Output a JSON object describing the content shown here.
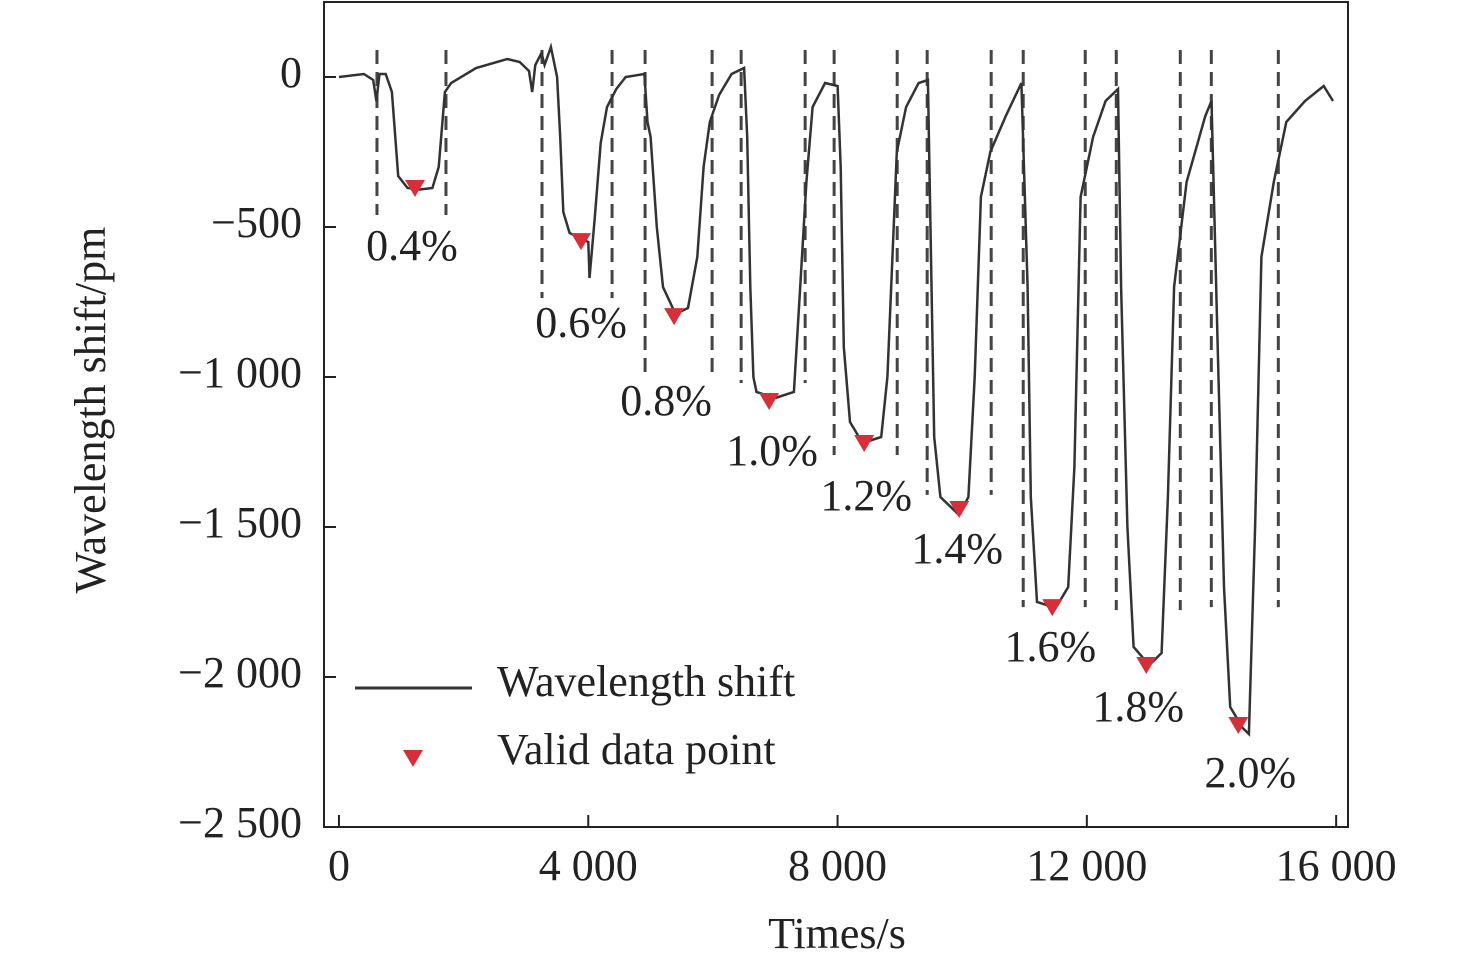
{
  "chart_data": {
    "type": "line",
    "x_label": "Times/s",
    "y_label": "Wavelength shift/pm",
    "xlim": [
      -240,
      16190
    ],
    "ylim": [
      -2500,
      250
    ],
    "xticks": [
      0,
      {
        "value": 4000,
        "label": "4 000"
      },
      {
        "value": 8000,
        "label": "8 000"
      },
      {
        "value": 12000,
        "label": "12 000"
      },
      {
        "value": 16000,
        "label": "16 000"
      }
    ],
    "yticks": [
      0,
      {
        "value": -500,
        "label": "−500"
      },
      {
        "value": -1000,
        "label": "−1 000"
      },
      {
        "value": -1500,
        "label": "−1 500"
      },
      {
        "value": -2000,
        "label": "−2 000"
      },
      {
        "value": -2500,
        "label": "−2 500"
      }
    ],
    "series": [
      {
        "name": "Wavelength shift",
        "color": "#333333",
        "x": [
          0,
          400,
          550,
          600,
          650,
          750,
          850,
          950,
          1100,
          1300,
          1500,
          1600,
          1700,
          1800,
          2200,
          2700,
          2900,
          3050,
          3100,
          3150,
          3250,
          3300,
          3400,
          3500,
          3550,
          3600,
          3700,
          3900,
          4000,
          4020,
          4100,
          4200,
          4300,
          4450,
          4600,
          4900,
          4950,
          5000,
          5100,
          5200,
          5400,
          5600,
          5750,
          5850,
          5950,
          6100,
          6300,
          6500,
          6550,
          6600,
          6650,
          6700,
          7000,
          7300,
          7400,
          7500,
          7600,
          7800,
          8000,
          8050,
          8100,
          8200,
          8400,
          8700,
          8800,
          8900,
          8950,
          9100,
          9300,
          9450,
          9500,
          9550,
          9650,
          9950,
          10100,
          10200,
          10300,
          10450,
          10700,
          10950,
          11050,
          11100,
          11200,
          11500,
          11700,
          11800,
          11900,
          12100,
          12300,
          12500,
          12550,
          12650,
          12750,
          13000,
          13200,
          13300,
          13400,
          13600,
          13900,
          14000,
          14100,
          14200,
          14300,
          14500,
          14600,
          14700,
          14800,
          15000,
          15200,
          15500,
          15800,
          15950
        ],
        "values": [
          0,
          10,
          -10,
          -80,
          10,
          10,
          -50,
          -330,
          -370,
          -375,
          -370,
          -300,
          -50,
          -20,
          30,
          60,
          50,
          20,
          -50,
          40,
          80,
          40,
          100,
          0,
          -200,
          -450,
          -520,
          -540,
          -550,
          -670,
          -480,
          -220,
          -100,
          -40,
          0,
          10,
          -150,
          -200,
          -500,
          -700,
          -790,
          -770,
          -600,
          -300,
          -150,
          -60,
          10,
          30,
          -200,
          -700,
          -1000,
          -1050,
          -1070,
          -1050,
          -700,
          -350,
          -100,
          -20,
          -30,
          -300,
          -900,
          -1150,
          -1220,
          -1200,
          -1000,
          -500,
          -250,
          -100,
          -20,
          -10,
          -600,
          -1200,
          -1400,
          -1460,
          -1400,
          -1000,
          -400,
          -250,
          -130,
          -20,
          -700,
          -1400,
          -1750,
          -1770,
          -1700,
          -1300,
          -400,
          -200,
          -80,
          -40,
          -700,
          -1500,
          -1900,
          -1960,
          -1920,
          -1400,
          -700,
          -350,
          -130,
          -80,
          -900,
          -1700,
          -2100,
          -2170,
          -2190,
          -1500,
          -600,
          -350,
          -150,
          -80,
          -30,
          -80
        ]
      },
      {
        "name": "Valid data point",
        "color": "#d62f3a",
        "x": [
          1220,
          3884,
          5377,
          6902,
          8427,
          9952,
          11445,
          12953,
          14430
        ],
        "values": [
          -370,
          -547,
          -797,
          -1080,
          -1220,
          -1440,
          -1767,
          -1960,
          -2160
        ],
        "labels": [
          "0.4%",
          "0.6%",
          "0.8%",
          "1.0%",
          "1.2%",
          "1.4%",
          "1.6%",
          "1.8%",
          "2.0%"
        ]
      }
    ],
    "dashed_lines": [
      {
        "x": 610,
        "y": [
          90,
          -460
        ]
      },
      {
        "x": 1717,
        "y": [
          90,
          -460
        ]
      },
      {
        "x": 3258,
        "y": [
          90,
          -737
        ]
      },
      {
        "x": 4382,
        "y": [
          90,
          -737
        ]
      },
      {
        "x": 4912,
        "y": [
          90,
          -990
        ]
      },
      {
        "x": 5987,
        "y": [
          90,
          -990
        ]
      },
      {
        "x": 6453,
        "y": [
          90,
          -1020
        ]
      },
      {
        "x": 7480,
        "y": [
          90,
          -1020
        ]
      },
      {
        "x": 7945,
        "y": [
          90,
          -1260
        ]
      },
      {
        "x": 8957,
        "y": [
          90,
          -1260
        ]
      },
      {
        "x": 9438,
        "y": [
          90,
          -1393
        ]
      },
      {
        "x": 10465,
        "y": [
          90,
          -1393
        ]
      },
      {
        "x": 10979,
        "y": [
          90,
          -1767
        ]
      },
      {
        "x": 11974,
        "y": [
          90,
          -1767
        ]
      },
      {
        "x": 12472,
        "y": [
          90,
          -1777
        ]
      },
      {
        "x": 13499,
        "y": [
          90,
          -1777
        ]
      },
      {
        "x": 13997,
        "y": [
          90,
          -1767
        ]
      },
      {
        "x": 15072,
        "y": [
          90,
          -1767
        ]
      }
    ]
  }
}
